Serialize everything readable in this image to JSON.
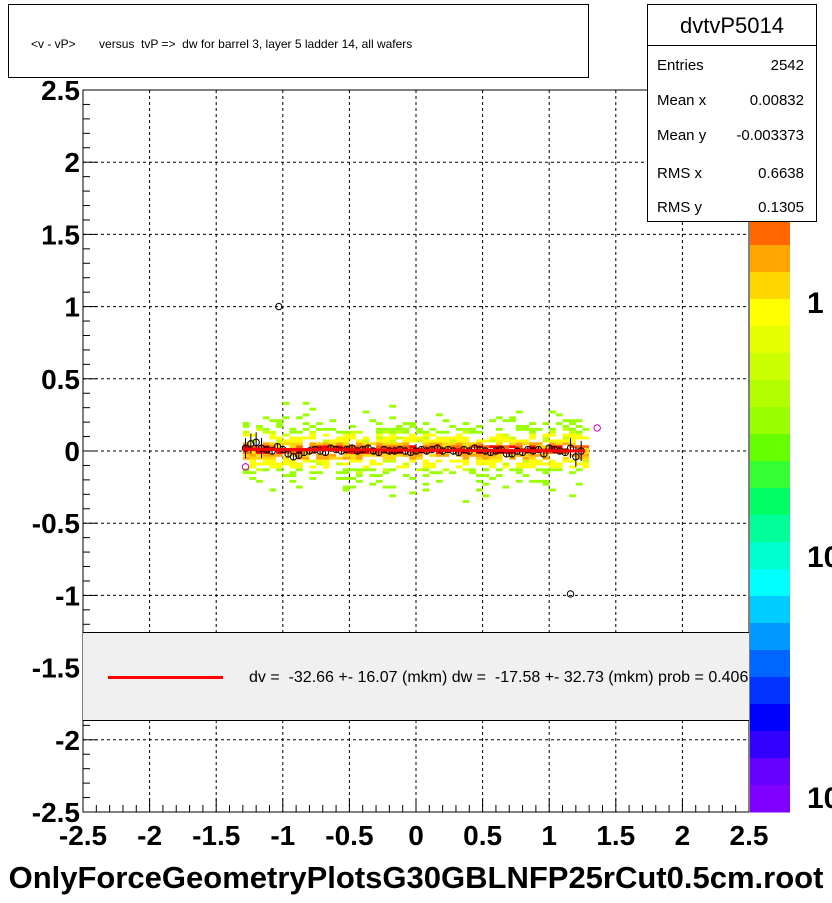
{
  "title": "<v - vP>       versus  tvP =>  dw for barrel 3, layer 5 ladder 14, all wafers",
  "stats": {
    "name": "dvtvP5014",
    "rows": [
      {
        "label": "Entries",
        "value": "2542"
      },
      {
        "label": "Mean x",
        "value": "0.00832"
      },
      {
        "label": "Mean y",
        "value": "-0.003373"
      },
      {
        "label": "RMS x",
        "value": "0.6638"
      },
      {
        "label": "RMS y",
        "value": "0.1305"
      }
    ]
  },
  "legend": {
    "text": "dv =  -32.66 +- 16.07 (mkm) dw =  -17.58 +- 32.73 (mkm) prob = 0.406",
    "line_color": "#ff0000"
  },
  "footer": "OnlyForceGeometryPlotsG30GBLNFP25rCut0.5cm.root",
  "colors": {
    "fit_line": "#ff0000",
    "profile_points": "#000000",
    "outlier_points": "#cc00cc",
    "grid": "#000000"
  },
  "chart_data": {
    "type": "heatmap",
    "xlim": [
      -2.5,
      2.5
    ],
    "ylim": [
      -2.5,
      2.5
    ],
    "x_ticks": [
      "-2.5",
      "-2",
      "-1.5",
      "-1",
      "-0.5",
      "0",
      "0.5",
      "1",
      "1.5",
      "2",
      "2.5"
    ],
    "y_ticks": [
      "2.5",
      "2",
      "1.5",
      "1",
      "0.5",
      "0",
      "-0.5",
      "-1",
      "-1.5",
      "-2",
      "-2.5"
    ],
    "grid": true,
    "colorbar_labels": [
      "1",
      "10",
      "10"
    ],
    "fit_line": {
      "x": [
        -1.3,
        1.27
      ],
      "y": [
        0.012,
        0.0
      ]
    },
    "profile": {
      "x": [
        -1.28,
        -1.24,
        -1.2,
        -1.16,
        -1.12,
        -1.08,
        -1.04,
        -1.0,
        -0.96,
        -0.92,
        -0.88,
        -0.84,
        -0.8,
        -0.76,
        -0.72,
        -0.68,
        -0.64,
        -0.6,
        -0.56,
        -0.52,
        -0.48,
        -0.44,
        -0.4,
        -0.36,
        -0.32,
        -0.28,
        -0.24,
        -0.2,
        -0.16,
        -0.12,
        -0.08,
        -0.04,
        0.0,
        0.04,
        0.08,
        0.12,
        0.16,
        0.2,
        0.24,
        0.28,
        0.32,
        0.36,
        0.4,
        0.44,
        0.48,
        0.52,
        0.56,
        0.6,
        0.64,
        0.68,
        0.72,
        0.76,
        0.8,
        0.84,
        0.88,
        0.92,
        0.96,
        1.0,
        1.04,
        1.08,
        1.12,
        1.16,
        1.2,
        1.24
      ],
      "y": [
        0.02,
        0.05,
        0.06,
        0.02,
        0.01,
        0.0,
        0.03,
        0.01,
        -0.02,
        -0.04,
        -0.03,
        -0.01,
        0.0,
        0.01,
        0.0,
        -0.01,
        0.02,
        0.01,
        0.0,
        0.01,
        0.02,
        0.0,
        0.01,
        0.02,
        0.0,
        -0.01,
        0.01,
        0.0,
        0.0,
        0.01,
        0.0,
        -0.01,
        0.0,
        0.01,
        0.0,
        0.01,
        0.02,
        0.0,
        0.01,
        0.0,
        -0.01,
        0.01,
        0.0,
        0.02,
        0.01,
        0.0,
        -0.01,
        0.0,
        0.01,
        -0.02,
        -0.02,
        0.0,
        -0.01,
        0.01,
        0.0,
        0.01,
        -0.02,
        0.02,
        0.01,
        0.0,
        -0.01,
        0.02,
        -0.04,
        0.0
      ]
    },
    "outliers": [
      {
        "x": -1.03,
        "y": 1.0,
        "color": "#000000"
      },
      {
        "x": 1.16,
        "y": -0.99,
        "color": "#000000"
      },
      {
        "x": -1.28,
        "y": -0.11,
        "color": "#cc00cc"
      },
      {
        "x": 1.36,
        "y": 0.16,
        "color": "#cc00cc"
      }
    ]
  }
}
